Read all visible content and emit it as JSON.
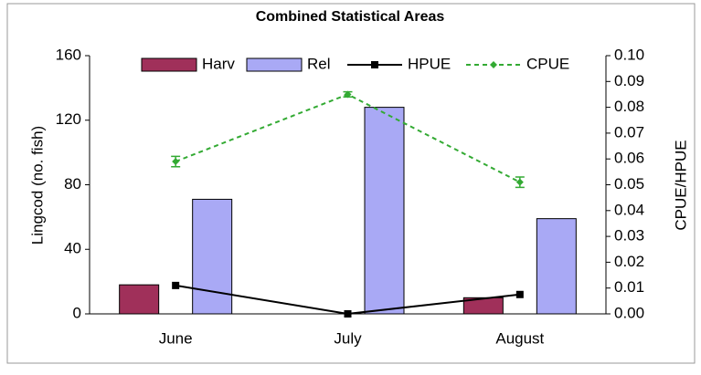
{
  "chart_data": {
    "type": "bar-line",
    "title": "Combined Statistical Areas",
    "y_label": "Lingcod (no. fish)",
    "y2_label": "CPUE/HPUE",
    "categories": [
      "June",
      "July",
      "August"
    ],
    "series": [
      {
        "name": "Harv",
        "type": "bar",
        "color": "#a0305a",
        "values": [
          18,
          0,
          10
        ]
      },
      {
        "name": "Rel",
        "type": "bar",
        "color": "#a9a9f5",
        "values": [
          71,
          128,
          59
        ]
      },
      {
        "name": "HPUE",
        "type": "line",
        "axis": "y2",
        "color": "#000000",
        "values": [
          0.011,
          0.0,
          0.0075
        ]
      },
      {
        "name": "CPUE",
        "type": "line",
        "axis": "y2",
        "color": "#33aa33",
        "dashed": true,
        "values": [
          0.059,
          0.085,
          0.051
        ],
        "errors": [
          0.002,
          0.001,
          0.002
        ]
      }
    ],
    "ylim": [
      0,
      160
    ],
    "yticks": [
      0,
      40,
      80,
      120,
      160
    ],
    "y2lim": [
      0,
      0.1
    ],
    "y2ticks": [
      {
        "value": 0,
        "label": "0.00"
      },
      0.01,
      0.02,
      0.03,
      0.04,
      0.05,
      0.06,
      0.07,
      0.08,
      0.09,
      {
        "value": 0.1,
        "label": "0.10"
      }
    ],
    "legend": "top"
  }
}
